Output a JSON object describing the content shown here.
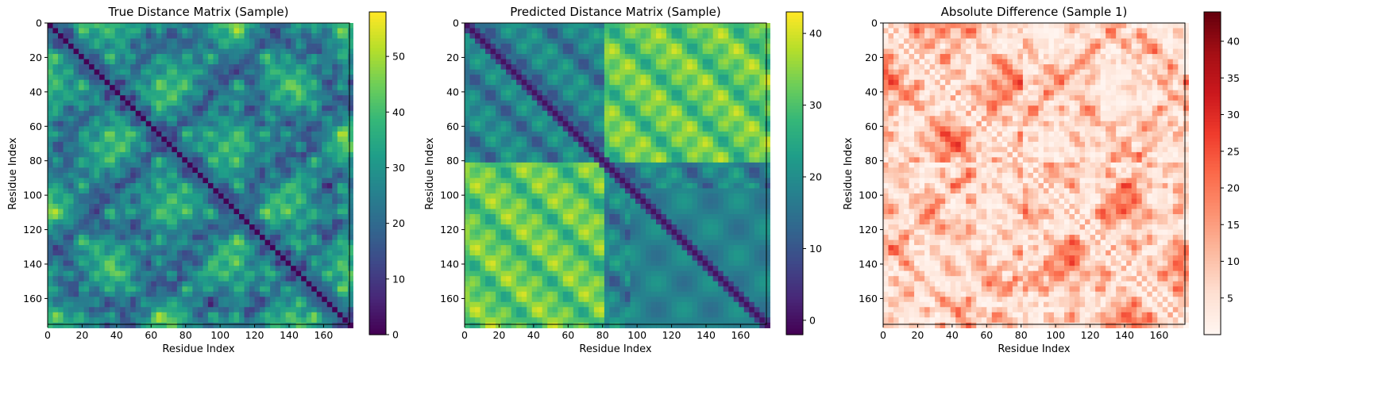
{
  "chart_data": [
    {
      "type": "heatmap",
      "title": "True Distance Matrix (Sample)",
      "xlabel": "Residue Index",
      "ylabel": "Residue Index",
      "xlim": [
        0,
        175
      ],
      "ylim": [
        175,
        0
      ],
      "x_ticks": [
        0,
        20,
        40,
        60,
        80,
        100,
        120,
        140,
        160
      ],
      "y_ticks": [
        0,
        20,
        40,
        60,
        80,
        100,
        120,
        140,
        160
      ],
      "matrix_size": 175,
      "colormap": "viridis",
      "color_range": [
        0,
        58
      ],
      "colorbar_ticks": [
        0,
        10,
        20,
        30,
        40,
        50
      ],
      "description_values": {
        "diagonal": 0,
        "typical": 28,
        "max": 58
      }
    },
    {
      "type": "heatmap",
      "title": "Predicted Distance Matrix (Sample)",
      "xlabel": "Residue Index",
      "ylabel": "Residue Index",
      "xlim": [
        0,
        175
      ],
      "ylim": [
        175,
        0
      ],
      "x_ticks": [
        0,
        20,
        40,
        60,
        80,
        100,
        120,
        140,
        160
      ],
      "y_ticks": [
        0,
        20,
        40,
        60,
        80,
        100,
        120,
        140,
        160
      ],
      "matrix_size": 175,
      "colormap": "viridis",
      "color_range": [
        -2,
        43
      ],
      "colorbar_ticks": [
        0,
        10,
        20,
        30,
        40
      ],
      "description_values": {
        "diagonal": 0,
        "typical": 22,
        "max": 43
      }
    },
    {
      "type": "heatmap",
      "title": "Absolute Difference (Sample 1)",
      "xlabel": "Residue Index",
      "ylabel": "Residue Index",
      "xlim": [
        0,
        175
      ],
      "ylim": [
        175,
        0
      ],
      "x_ticks": [
        0,
        20,
        40,
        60,
        80,
        100,
        120,
        140,
        160
      ],
      "y_ticks": [
        0,
        20,
        40,
        60,
        80,
        100,
        120,
        140,
        160
      ],
      "matrix_size": 175,
      "colormap": "Reds",
      "color_range": [
        0,
        44
      ],
      "colorbar_ticks": [
        5,
        10,
        15,
        20,
        25,
        30,
        35,
        40
      ],
      "description_values": {
        "diagonal": 0,
        "typical": 8,
        "max": 44
      }
    }
  ],
  "colors": {
    "viridis": [
      "#440154",
      "#482878",
      "#3e4989",
      "#31688e",
      "#26828e",
      "#1f9e89",
      "#35b779",
      "#6ece58",
      "#b5de2b",
      "#fde725"
    ],
    "reds": [
      "#fff5f0",
      "#fee0d2",
      "#fcbba1",
      "#fc9272",
      "#fb6a4a",
      "#ef3b2c",
      "#cb181d",
      "#a50f15",
      "#67000d"
    ]
  }
}
